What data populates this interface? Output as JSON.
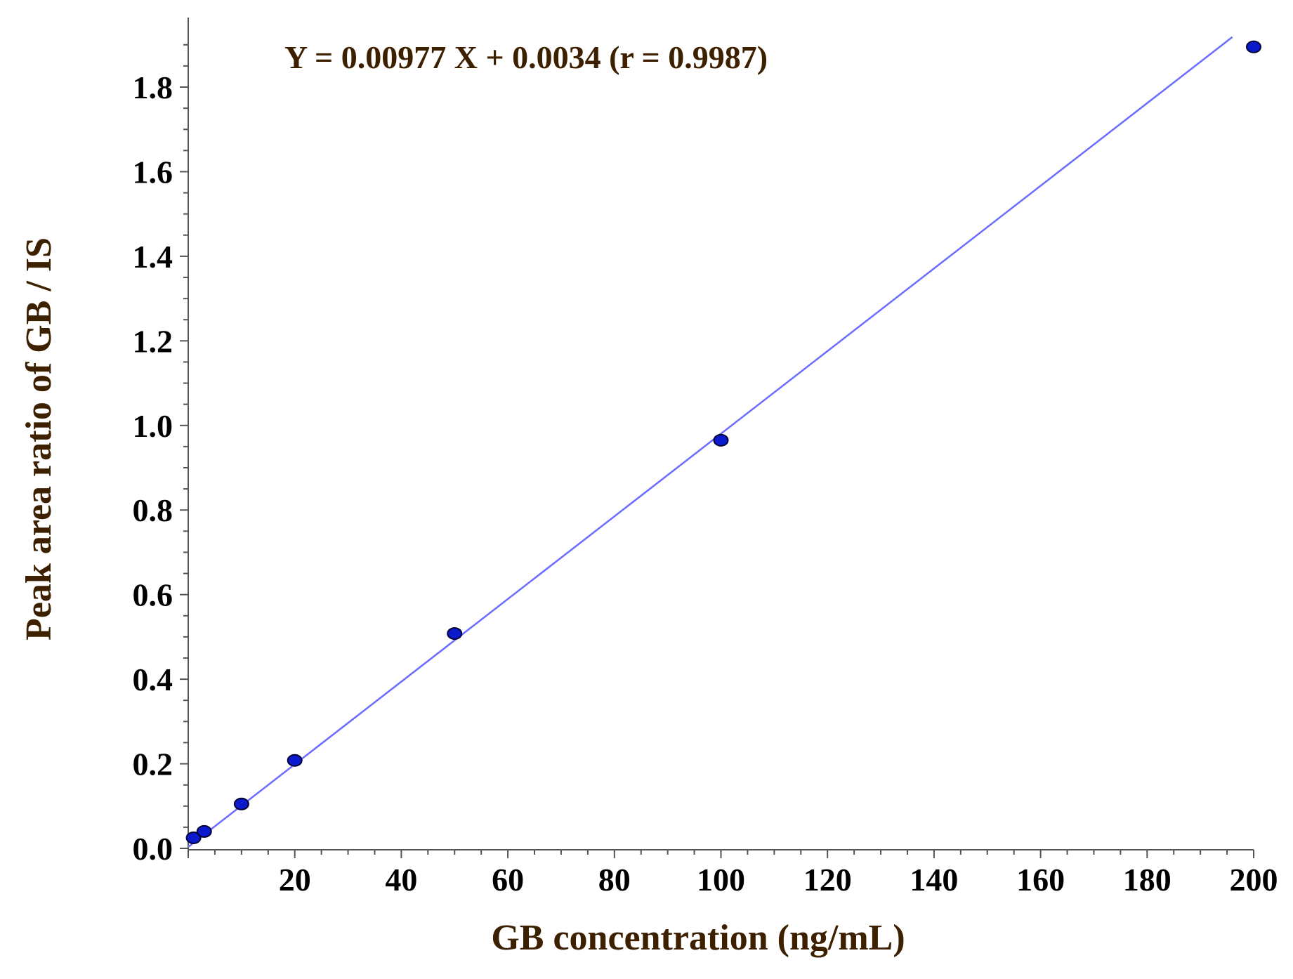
{
  "chart_data": {
    "type": "scatter",
    "annotation": "Y = 0.00977 X + 0.0034 (r = 0.9987)",
    "xlabel": "GB concentration (ng/mL)",
    "ylabel": "Peak area ratio of GB / IS",
    "xlim": [
      0,
      200
    ],
    "ylim": [
      0,
      1.95
    ],
    "x_ticks": [
      20,
      40,
      60,
      80,
      100,
      120,
      140,
      160,
      180,
      200
    ],
    "y_ticks": [
      0.0,
      0.2,
      0.4,
      0.6,
      0.8,
      1.0,
      1.2,
      1.4,
      1.6,
      1.8
    ],
    "series": [
      {
        "points": [
          {
            "x": 1,
            "y": 0.025
          },
          {
            "x": 3,
            "y": 0.04
          },
          {
            "x": 10,
            "y": 0.105
          },
          {
            "x": 20,
            "y": 0.208
          },
          {
            "x": 50,
            "y": 0.508
          },
          {
            "x": 100,
            "y": 0.965
          },
          {
            "x": 200,
            "y": 1.895
          }
        ]
      }
    ],
    "fit_line": {
      "slope": 0.00977,
      "intercept": 0.0034,
      "x_range": [
        0,
        196
      ]
    },
    "grid": false,
    "colors": {
      "points": "#0a1acc",
      "point_outline": "#000033",
      "line": "#6b6bff",
      "axis_title": "#3d2000",
      "equation": "#3d2000",
      "tick_label": "#000000",
      "axis": "#555555"
    }
  }
}
